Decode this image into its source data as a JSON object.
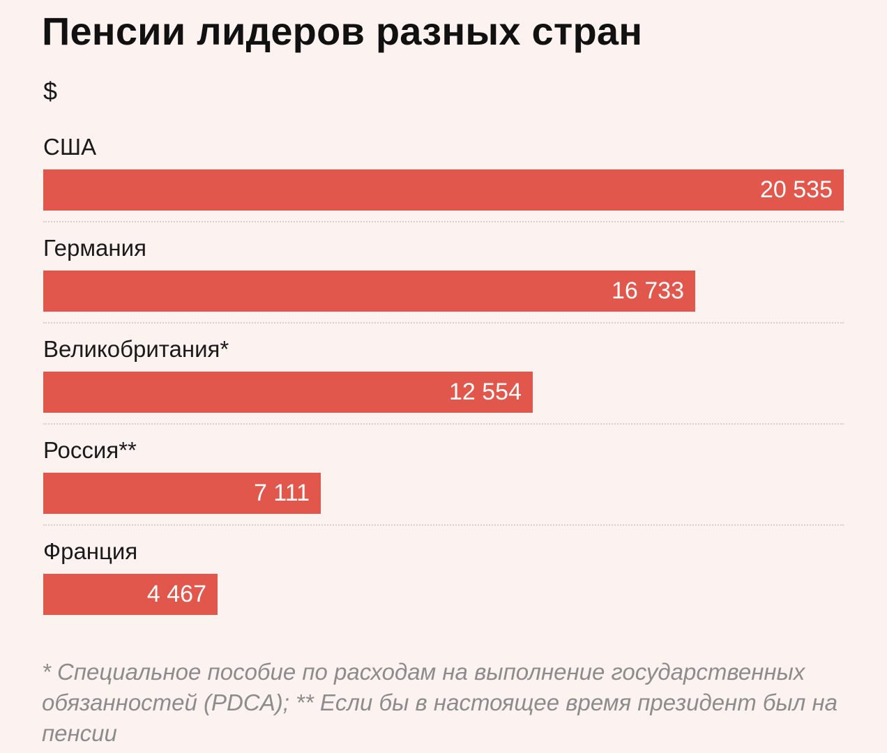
{
  "header": {
    "title": "Пенсии лидеров разных стран",
    "unit": "$"
  },
  "chart_data": {
    "type": "bar",
    "orientation": "horizontal",
    "title": "Пенсии лидеров разных стран",
    "ylabel": "$",
    "xlim": [
      0,
      20535
    ],
    "grid": false,
    "colors": {
      "bar": "#e2574c",
      "background": "#fcf3f0",
      "value_text": "#ffffff"
    },
    "categories": [
      "США",
      "Германия",
      "Великобритания*",
      "Россия**",
      "Франция"
    ],
    "values": [
      20535,
      16733,
      12554,
      7111,
      4467
    ],
    "value_labels": [
      "20 535",
      "16 733",
      "12 554",
      "7 111",
      "4 467"
    ]
  },
  "footnote": "* Специальное пособие по расходам на выполнение государственных обязанностей (PDCA); ** Если бы в настоящее время президент был на пенсии"
}
